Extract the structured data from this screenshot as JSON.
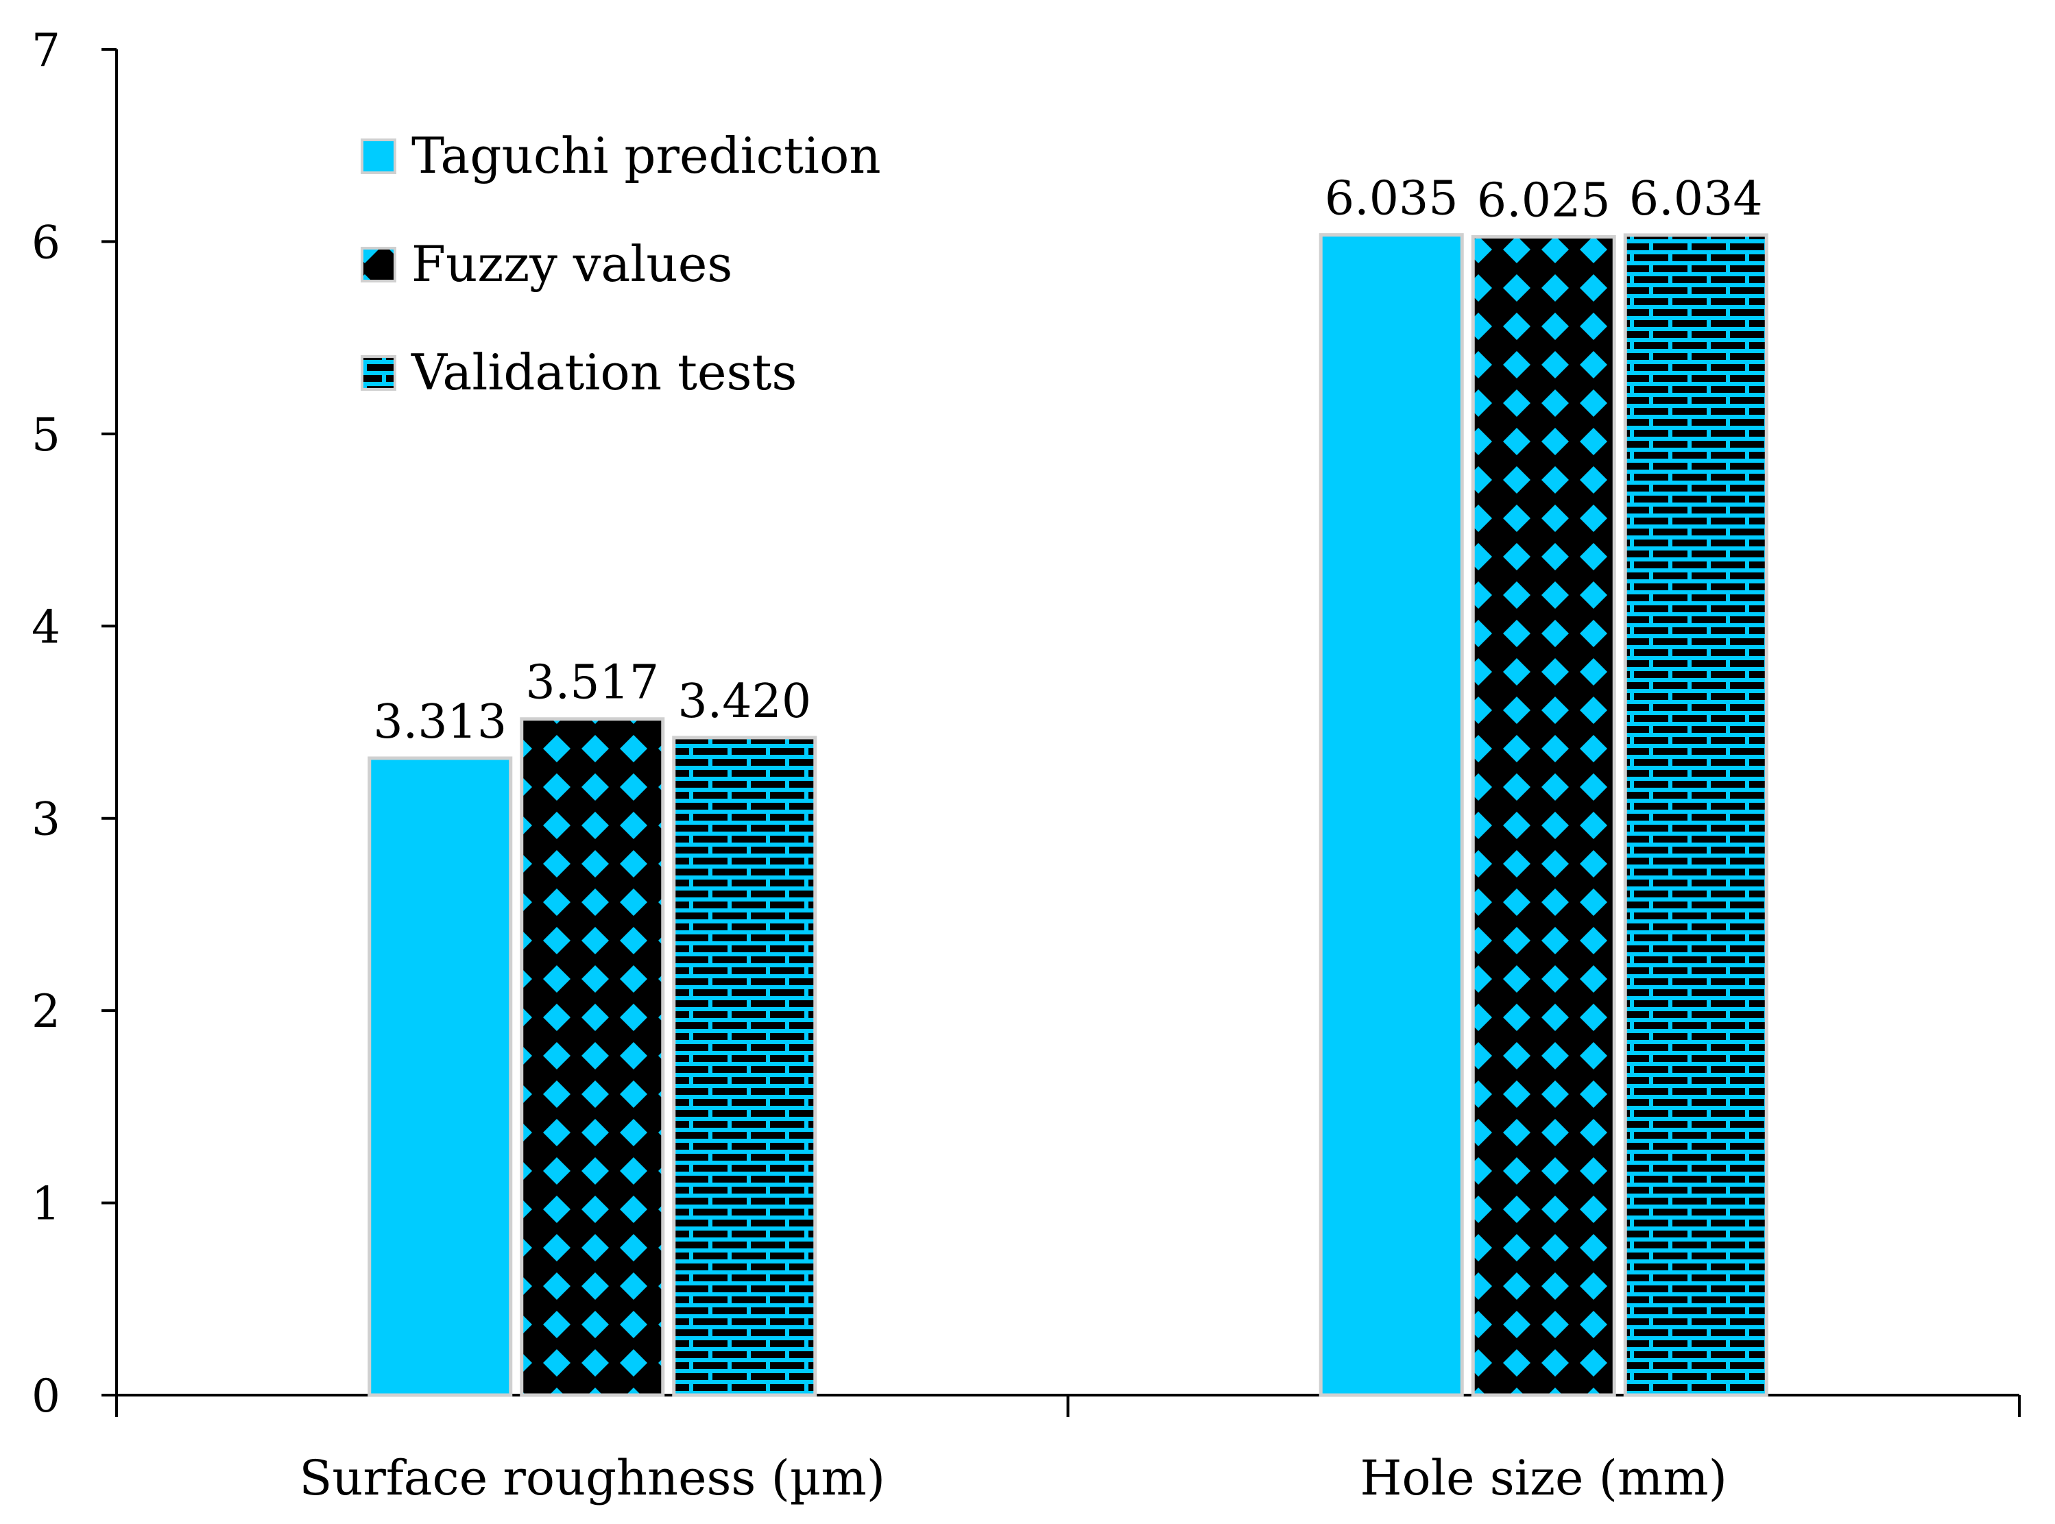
{
  "chart_data": {
    "type": "bar",
    "title": "",
    "xlabel": "",
    "ylabel": "",
    "categories": [
      "Surface roughness (µm)",
      "Hole size (mm)"
    ],
    "ylim": [
      0,
      7
    ],
    "yticks": [
      0,
      1,
      2,
      3,
      4,
      5,
      6,
      7
    ],
    "grid": false,
    "legend_position": "top-left",
    "series": [
      {
        "name": "Taguchi prediction",
        "values": [
          3.313,
          6.035
        ],
        "labels": [
          "3.313",
          "6.035"
        ],
        "pattern": "solid",
        "color": "#00CCFF"
      },
      {
        "name": "Fuzzy values",
        "values": [
          3.517,
          6.025
        ],
        "labels": [
          "3.517",
          "6.025"
        ],
        "pattern": "diamonds",
        "color": "#00CCFF",
        "pattern_color": "#000000"
      },
      {
        "name": "Validation tests",
        "values": [
          3.42,
          6.034
        ],
        "labels": [
          "3.420",
          "6.034"
        ],
        "pattern": "bricks",
        "color": "#00CCFF",
        "pattern_color": "#000000"
      }
    ],
    "colors": {
      "bar_fill": "#00CCFF",
      "pattern_ink": "#000000",
      "bar_outline": "#D0D0D0",
      "axis": "#000000"
    }
  }
}
